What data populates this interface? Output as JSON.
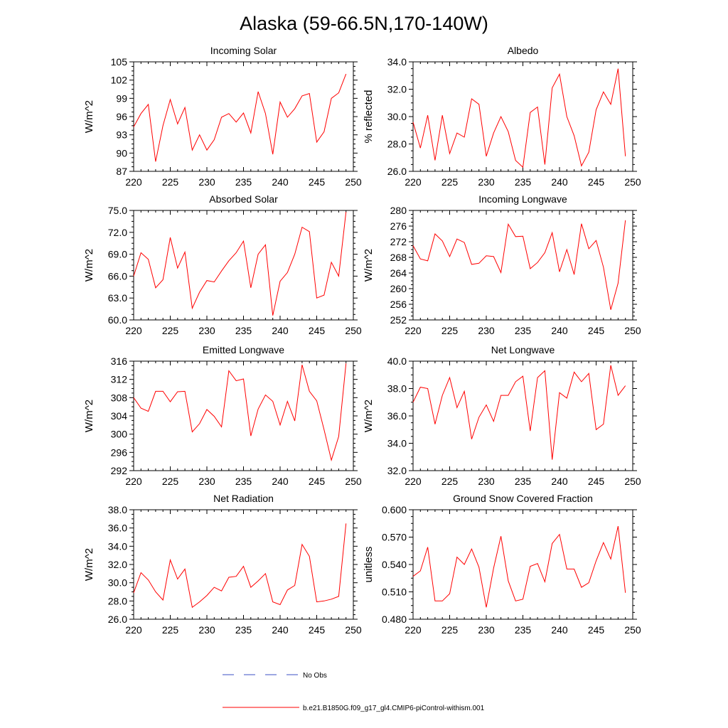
{
  "title": "Alaska (59-66.5N,170-140W)",
  "legend": {
    "obs_label": "No Obs",
    "obs_color": "#3b4fc4",
    "model_label": "b.e21.B1850G.f09_g17_gl4.CMIP6-piControl-withism.001",
    "model_color": "#ff0000"
  },
  "chart_data": [
    {
      "type": "line",
      "title": "Incoming Solar",
      "ylabel": "W/m^2",
      "xlim": [
        220,
        250
      ],
      "ylim": [
        87,
        105
      ],
      "xticks": [
        "220",
        "225",
        "230",
        "235",
        "240",
        "245",
        "250"
      ],
      "yticks": [
        "87",
        "90",
        "93",
        "96",
        "99",
        "102",
        "105"
      ],
      "x": [
        220,
        221,
        222,
        223,
        224,
        225,
        226,
        227,
        228,
        229,
        230,
        231,
        232,
        233,
        234,
        235,
        236,
        237,
        238,
        239,
        240,
        241,
        242,
        243,
        244,
        245,
        246,
        247,
        248,
        249
      ],
      "values": [
        94.3,
        96.5,
        98.0,
        88.6,
        94.5,
        98.8,
        94.8,
        97.5,
        90.5,
        93.0,
        90.5,
        92.2,
        95.9,
        96.5,
        95.1,
        96.6,
        93.3,
        100.1,
        96.5,
        89.8,
        98.4,
        95.9,
        97.3,
        99.4,
        99.8,
        91.8,
        93.5,
        99.0,
        99.9,
        103.0
      ]
    },
    {
      "type": "line",
      "title": "Albedo",
      "ylabel": "% reflected",
      "xlim": [
        220,
        250
      ],
      "ylim": [
        26,
        34
      ],
      "xticks": [
        "220",
        "225",
        "230",
        "235",
        "240",
        "245",
        "250"
      ],
      "yticks": [
        "26.0",
        "28.0",
        "30.0",
        "32.0",
        "34.0"
      ],
      "x": [
        220,
        221,
        222,
        223,
        224,
        225,
        226,
        227,
        228,
        229,
        230,
        231,
        232,
        233,
        234,
        235,
        236,
        237,
        238,
        239,
        240,
        241,
        242,
        243,
        244,
        245,
        246,
        247,
        248,
        249
      ],
      "values": [
        29.6,
        27.7,
        30.1,
        26.8,
        30.1,
        27.3,
        28.8,
        28.5,
        31.3,
        30.9,
        27.1,
        28.8,
        30.0,
        28.9,
        26.8,
        26.3,
        30.3,
        30.7,
        26.5,
        32.1,
        33.1,
        30.0,
        28.6,
        26.4,
        27.4,
        30.5,
        31.8,
        30.9,
        33.5,
        27.1
      ]
    },
    {
      "type": "line",
      "title": "Absorbed Solar",
      "ylabel": "W/m^2",
      "xlim": [
        220,
        250
      ],
      "ylim": [
        60,
        75
      ],
      "xticks": [
        "220",
        "225",
        "230",
        "235",
        "240",
        "245",
        "250"
      ],
      "yticks": [
        "60.0",
        "63.0",
        "66.0",
        "69.0",
        "72.0",
        "75.0"
      ],
      "x": [
        220,
        221,
        222,
        223,
        224,
        225,
        226,
        227,
        228,
        229,
        230,
        231,
        232,
        233,
        234,
        235,
        236,
        237,
        238,
        239,
        240,
        241,
        242,
        243,
        244,
        245,
        246,
        247,
        248,
        249
      ],
      "values": [
        66.0,
        69.2,
        68.3,
        64.4,
        65.5,
        71.3,
        67.1,
        69.3,
        61.6,
        63.8,
        65.4,
        65.2,
        66.7,
        68.1,
        69.2,
        70.8,
        64.4,
        69.0,
        70.3,
        60.6,
        65.3,
        66.5,
        69.0,
        72.7,
        72.1,
        63.0,
        63.4,
        67.9,
        66.0,
        74.8
      ]
    },
    {
      "type": "line",
      "title": "Incoming Longwave",
      "ylabel": "W/m^2",
      "xlim": [
        220,
        250
      ],
      "ylim": [
        252,
        280
      ],
      "xticks": [
        "220",
        "225",
        "230",
        "235",
        "240",
        "245",
        "250"
      ],
      "yticks": [
        "252",
        "256",
        "260",
        "264",
        "268",
        "272",
        "276",
        "280"
      ],
      "x": [
        220,
        221,
        222,
        223,
        224,
        225,
        226,
        227,
        228,
        229,
        230,
        231,
        232,
        233,
        234,
        235,
        236,
        237,
        238,
        239,
        240,
        241,
        242,
        243,
        244,
        245,
        246,
        247,
        248,
        249
      ],
      "values": [
        271.0,
        267.6,
        267.1,
        274.0,
        272.2,
        268.2,
        272.7,
        271.8,
        266.2,
        266.5,
        268.4,
        268.2,
        264.1,
        276.5,
        273.3,
        273.4,
        265.1,
        266.7,
        269.2,
        274.3,
        264.3,
        270.0,
        263.6,
        276.6,
        270.2,
        272.3,
        265.5,
        254.6,
        261.4,
        277.5
      ]
    },
    {
      "type": "line",
      "title": "Emitted Longwave",
      "ylabel": "W/m^2",
      "xlim": [
        220,
        250
      ],
      "ylim": [
        292,
        316
      ],
      "xticks": [
        "220",
        "225",
        "230",
        "235",
        "240",
        "245",
        "250"
      ],
      "yticks": [
        "292",
        "296",
        "300",
        "304",
        "308",
        "312",
        "316"
      ],
      "x": [
        220,
        221,
        222,
        223,
        224,
        225,
        226,
        227,
        228,
        229,
        230,
        231,
        232,
        233,
        234,
        235,
        236,
        237,
        238,
        239,
        240,
        241,
        242,
        243,
        244,
        245,
        246,
        247,
        248,
        249
      ],
      "values": [
        308.0,
        305.7,
        305.0,
        309.4,
        309.4,
        307.1,
        309.3,
        309.4,
        300.5,
        302.3,
        305.4,
        303.9,
        301.6,
        313.9,
        311.7,
        312.1,
        299.6,
        305.5,
        308.6,
        307.2,
        302.0,
        307.2,
        302.9,
        315.2,
        309.4,
        307.3,
        301.0,
        294.3,
        299.5,
        315.5
      ]
    },
    {
      "type": "line",
      "title": "Net Longwave",
      "ylabel": "W/m^2",
      "xlim": [
        220,
        250
      ],
      "ylim": [
        32,
        40
      ],
      "xticks": [
        "220",
        "225",
        "230",
        "235",
        "240",
        "245",
        "250"
      ],
      "yticks": [
        "32.0",
        "34.0",
        "36.0",
        "38.0",
        "40.0"
      ],
      "x": [
        220,
        221,
        222,
        223,
        224,
        225,
        226,
        227,
        228,
        229,
        230,
        231,
        232,
        233,
        234,
        235,
        236,
        237,
        238,
        239,
        240,
        241,
        242,
        243,
        244,
        245,
        246,
        247,
        248,
        249
      ],
      "values": [
        37.0,
        38.1,
        38.0,
        35.4,
        37.5,
        38.8,
        36.6,
        37.8,
        34.3,
        35.9,
        36.8,
        35.6,
        37.5,
        37.5,
        38.5,
        38.9,
        34.9,
        38.8,
        39.3,
        32.8,
        37.7,
        37.3,
        39.2,
        38.5,
        39.1,
        35.0,
        35.4,
        39.7,
        37.5,
        38.2
      ]
    },
    {
      "type": "line",
      "title": "Net Radiation",
      "ylabel": "W/m^2",
      "xlim": [
        220,
        250
      ],
      "ylim": [
        26,
        38
      ],
      "xticks": [
        "220",
        "225",
        "230",
        "235",
        "240",
        "245",
        "250"
      ],
      "yticks": [
        "26.0",
        "28.0",
        "30.0",
        "32.0",
        "34.0",
        "36.0",
        "38.0"
      ],
      "x": [
        220,
        221,
        222,
        223,
        224,
        225,
        226,
        227,
        228,
        229,
        230,
        231,
        232,
        233,
        234,
        235,
        236,
        237,
        238,
        239,
        240,
        241,
        242,
        243,
        244,
        245,
        246,
        247,
        248,
        249
      ],
      "values": [
        28.9,
        31.1,
        30.3,
        29.0,
        28.1,
        32.5,
        30.4,
        31.5,
        27.3,
        27.9,
        28.6,
        29.5,
        29.1,
        30.6,
        30.7,
        31.8,
        29.5,
        30.2,
        31.0,
        27.9,
        27.6,
        29.2,
        29.7,
        34.2,
        32.9,
        27.9,
        28.0,
        28.2,
        28.5,
        36.5
      ]
    },
    {
      "type": "line",
      "title": "Ground Snow Covered Fraction",
      "ylabel": "unitless",
      "xlim": [
        220,
        250
      ],
      "ylim": [
        0.48,
        0.6
      ],
      "xticks": [
        "220",
        "225",
        "230",
        "235",
        "240",
        "245",
        "250"
      ],
      "yticks": [
        "0.480",
        "0.510",
        "0.540",
        "0.570",
        "0.600"
      ],
      "x": [
        220,
        221,
        222,
        223,
        224,
        225,
        226,
        227,
        228,
        229,
        230,
        231,
        232,
        233,
        234,
        235,
        236,
        237,
        238,
        239,
        240,
        241,
        242,
        243,
        244,
        245,
        246,
        247,
        248,
        249
      ],
      "values": [
        0.527,
        0.533,
        0.559,
        0.5,
        0.5,
        0.508,
        0.548,
        0.54,
        0.557,
        0.537,
        0.493,
        0.536,
        0.571,
        0.522,
        0.5,
        0.502,
        0.538,
        0.541,
        0.521,
        0.563,
        0.573,
        0.535,
        0.535,
        0.515,
        0.52,
        0.544,
        0.564,
        0.546,
        0.582,
        0.509
      ]
    }
  ]
}
